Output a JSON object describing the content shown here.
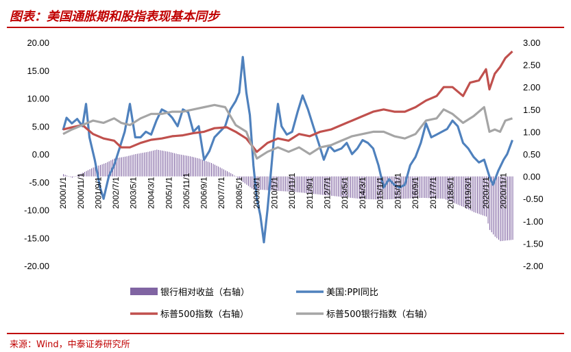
{
  "header": {
    "title": "图表：美国通胀期和股指表现基本同步"
  },
  "footer": {
    "source": "来源：Wind，中泰证券研究所"
  },
  "chart_data": {
    "type": "line",
    "title": "",
    "x_ticks": [
      "2000/1/1",
      "2000/11/1",
      "2001/9/1",
      "2002/7/1",
      "2003/5/1",
      "2004/3/1",
      "2005/1/1",
      "2005/11/1",
      "2006/9/1",
      "2007/7/1",
      "2008/5/1",
      "2009/3/1",
      "2010/1/1",
      "2010/11/1",
      "2011/9/1",
      "2012/7/1",
      "2013/5/1",
      "2014/3/1",
      "2015/1/1",
      "2015/11/1",
      "2016/9/1",
      "2017/7/1",
      "2018/5/1",
      "2019/3/1",
      "2020/1/1",
      "2020/11/1"
    ],
    "x_range": [
      "2000/1/1",
      "2021/5/1"
    ],
    "left_axis": {
      "ticks": [
        "20.00",
        "15.00",
        "10.00",
        "5.00",
        "0.00",
        "-5.00",
        "-10.00",
        "-15.00",
        "-20.00"
      ],
      "ylim": [
        -20,
        20
      ]
    },
    "right_axis": {
      "ticks": [
        "3.00",
        "2.50",
        "2.00",
        "1.50",
        "1.00",
        "0.50",
        "0.00",
        "-0.50",
        "-1.00",
        "-1.50",
        "-2.00"
      ],
      "ylim": [
        -2,
        3
      ]
    },
    "series": [
      {
        "name": "银行相对收益（右轴）",
        "type": "bar",
        "axis": "right",
        "color": "#8064a2",
        "points": [
          [
            "2000/1/1",
            0.05
          ],
          [
            "2000/6/1",
            -0.03
          ],
          [
            "2001/1/1",
            0.1
          ],
          [
            "2001/6/1",
            0.2
          ],
          [
            "2002/1/1",
            0.3
          ],
          [
            "2002/6/1",
            0.4
          ],
          [
            "2003/1/1",
            0.45
          ],
          [
            "2003/6/1",
            0.5
          ],
          [
            "2004/1/1",
            0.55
          ],
          [
            "2004/6/1",
            0.6
          ],
          [
            "2005/1/1",
            0.55
          ],
          [
            "2005/6/1",
            0.5
          ],
          [
            "2006/1/1",
            0.45
          ],
          [
            "2006/6/1",
            0.4
          ],
          [
            "2007/1/1",
            0.3
          ],
          [
            "2007/6/1",
            0.2
          ],
          [
            "2008/1/1",
            0.05
          ],
          [
            "2008/6/1",
            -0.1
          ],
          [
            "2009/1/1",
            -0.3
          ],
          [
            "2009/6/1",
            -0.3
          ],
          [
            "2010/1/1",
            -0.32
          ],
          [
            "2011/1/1",
            -0.35
          ],
          [
            "2012/1/1",
            -0.4
          ],
          [
            "2013/1/1",
            -0.45
          ],
          [
            "2014/1/1",
            -0.5
          ],
          [
            "2015/1/1",
            -0.52
          ],
          [
            "2016/1/1",
            -0.5
          ],
          [
            "2017/1/1",
            -0.48
          ],
          [
            "2018/1/1",
            -0.5
          ],
          [
            "2019/1/1",
            -0.7
          ],
          [
            "2019/6/1",
            -0.8
          ],
          [
            "2020/1/1",
            -0.9
          ],
          [
            "2020/3/1",
            -1.2
          ],
          [
            "2020/6/1",
            -1.35
          ],
          [
            "2020/9/1",
            -1.45
          ],
          [
            "2021/4/1",
            -1.42
          ]
        ]
      },
      {
        "name": "美国:PPI同比",
        "type": "line",
        "axis": "left",
        "color": "#4f81bd",
        "points": [
          [
            "2000/1/1",
            4.3
          ],
          [
            "2000/3/1",
            6.5
          ],
          [
            "2000/6/1",
            5.5
          ],
          [
            "2000/9/1",
            6.3
          ],
          [
            "2000/12/1",
            5.0
          ],
          [
            "2001/2/1",
            9.0
          ],
          [
            "2001/4/1",
            3.0
          ],
          [
            "2001/7/1",
            -1.0
          ],
          [
            "2001/10/1",
            -6.0
          ],
          [
            "2001/12/1",
            -8.0
          ],
          [
            "2002/3/1",
            -4.0
          ],
          [
            "2002/6/1",
            -2.0
          ],
          [
            "2002/9/1",
            1.0
          ],
          [
            "2002/12/1",
            4.0
          ],
          [
            "2003/3/1",
            9.0
          ],
          [
            "2003/6/1",
            3.0
          ],
          [
            "2003/9/1",
            3.0
          ],
          [
            "2003/12/1",
            4.0
          ],
          [
            "2004/3/1",
            3.5
          ],
          [
            "2004/6/1",
            6.0
          ],
          [
            "2004/9/1",
            8.0
          ],
          [
            "2004/12/1",
            7.5
          ],
          [
            "2005/3/1",
            6.5
          ],
          [
            "2005/6/1",
            5.0
          ],
          [
            "2005/9/1",
            8.0
          ],
          [
            "2005/12/1",
            7.5
          ],
          [
            "2006/3/1",
            4.0
          ],
          [
            "2006/6/1",
            5.0
          ],
          [
            "2006/9/1",
            -1.0
          ],
          [
            "2006/12/1",
            0.5
          ],
          [
            "2007/3/1",
            3.0
          ],
          [
            "2007/6/1",
            4.0
          ],
          [
            "2007/9/1",
            5.0
          ],
          [
            "2007/12/1",
            8.0
          ],
          [
            "2008/3/1",
            9.5
          ],
          [
            "2008/5/1",
            11.0
          ],
          [
            "2008/7/1",
            17.4
          ],
          [
            "2008/9/1",
            11.0
          ],
          [
            "2008/11/1",
            7.0
          ],
          [
            "2009/1/1",
            -2.0
          ],
          [
            "2009/3/1",
            -8.0
          ],
          [
            "2009/5/1",
            -11.0
          ],
          [
            "2009/7/1",
            -15.8
          ],
          [
            "2009/9/1",
            -10.0
          ],
          [
            "2009/11/1",
            -3.0
          ],
          [
            "2010/1/1",
            4.0
          ],
          [
            "2010/3/1",
            9.0
          ],
          [
            "2010/5/1",
            5.0
          ],
          [
            "2010/8/1",
            3.5
          ],
          [
            "2010/11/1",
            4.0
          ],
          [
            "2011/2/1",
            7.5
          ],
          [
            "2011/5/1",
            10.5
          ],
          [
            "2011/8/1",
            8.0
          ],
          [
            "2011/11/1",
            5.0
          ],
          [
            "2012/2/1",
            2.0
          ],
          [
            "2012/5/1",
            -1.0
          ],
          [
            "2012/8/1",
            1.5
          ],
          [
            "2012/11/1",
            0.5
          ],
          [
            "2013/3/1",
            1.0
          ],
          [
            "2013/6/1",
            2.0
          ],
          [
            "2013/9/1",
            0.0
          ],
          [
            "2013/12/1",
            1.0
          ],
          [
            "2014/3/1",
            2.5
          ],
          [
            "2014/6/1",
            2.0
          ],
          [
            "2014/9/1",
            1.0
          ],
          [
            "2014/12/1",
            -2.0
          ],
          [
            "2015/3/1",
            -6.0
          ],
          [
            "2015/6/1",
            -4.5
          ],
          [
            "2015/9/1",
            -5.5
          ],
          [
            "2015/12/1",
            -6.0
          ],
          [
            "2016/3/1",
            -5.5
          ],
          [
            "2016/6/1",
            -2.0
          ],
          [
            "2016/9/1",
            -0.5
          ],
          [
            "2016/12/1",
            2.0
          ],
          [
            "2017/3/1",
            5.5
          ],
          [
            "2017/6/1",
            3.0
          ],
          [
            "2017/9/1",
            3.5
          ],
          [
            "2017/12/1",
            4.0
          ],
          [
            "2018/3/1",
            4.5
          ],
          [
            "2018/6/1",
            6.0
          ],
          [
            "2018/9/1",
            5.0
          ],
          [
            "2018/12/1",
            2.0
          ],
          [
            "2019/3/1",
            1.0
          ],
          [
            "2019/6/1",
            -0.5
          ],
          [
            "2019/9/1",
            -1.5
          ],
          [
            "2019/12/1",
            -1.0
          ],
          [
            "2020/3/1",
            -4.0
          ],
          [
            "2020/5/1",
            -5.5
          ],
          [
            "2020/8/1",
            -3.0
          ],
          [
            "2020/11/1",
            -1.0
          ],
          [
            "2021/1/1",
            0.0
          ],
          [
            "2021/4/1",
            2.5
          ]
        ]
      },
      {
        "name": "标普500指数（右轴）",
        "type": "line",
        "axis": "right",
        "color": "#c0504d",
        "points": [
          [
            "2000/1/1",
            1.05
          ],
          [
            "2000/6/1",
            1.1
          ],
          [
            "2000/12/1",
            1.15
          ],
          [
            "2001/6/1",
            0.95
          ],
          [
            "2001/12/1",
            0.85
          ],
          [
            "2002/6/1",
            0.8
          ],
          [
            "2002/10/1",
            0.65
          ],
          [
            "2003/3/1",
            0.65
          ],
          [
            "2003/9/1",
            0.75
          ],
          [
            "2004/3/1",
            0.82
          ],
          [
            "2004/9/1",
            0.85
          ],
          [
            "2005/3/1",
            0.9
          ],
          [
            "2005/9/1",
            0.92
          ],
          [
            "2006/3/1",
            0.97
          ],
          [
            "2006/9/1",
            1.0
          ],
          [
            "2007/3/1",
            1.08
          ],
          [
            "2007/10/1",
            1.1
          ],
          [
            "2008/3/1",
            1.0
          ],
          [
            "2008/9/1",
            0.85
          ],
          [
            "2009/3/1",
            0.55
          ],
          [
            "2009/9/1",
            0.75
          ],
          [
            "2010/3/1",
            0.85
          ],
          [
            "2010/9/1",
            0.8
          ],
          [
            "2011/3/1",
            0.95
          ],
          [
            "2011/9/1",
            0.9
          ],
          [
            "2012/3/1",
            1.0
          ],
          [
            "2012/9/1",
            1.05
          ],
          [
            "2013/3/1",
            1.15
          ],
          [
            "2013/9/1",
            1.25
          ],
          [
            "2014/3/1",
            1.35
          ],
          [
            "2014/9/1",
            1.45
          ],
          [
            "2015/3/1",
            1.5
          ],
          [
            "2015/9/1",
            1.45
          ],
          [
            "2016/3/1",
            1.45
          ],
          [
            "2016/9/1",
            1.55
          ],
          [
            "2017/3/1",
            1.7
          ],
          [
            "2017/9/1",
            1.8
          ],
          [
            "2018/1/1",
            2.0
          ],
          [
            "2018/6/1",
            2.0
          ],
          [
            "2018/12/1",
            1.8
          ],
          [
            "2019/4/1",
            2.1
          ],
          [
            "2019/9/1",
            2.15
          ],
          [
            "2020/1/1",
            2.4
          ],
          [
            "2020/3/1",
            1.95
          ],
          [
            "2020/6/1",
            2.3
          ],
          [
            "2020/9/1",
            2.45
          ],
          [
            "2020/12/1",
            2.65
          ],
          [
            "2021/4/1",
            2.8
          ]
        ]
      },
      {
        "name": "标普500银行指数（右轴）",
        "type": "line",
        "axis": "right",
        "color": "#a5a5a5",
        "points": [
          [
            "2000/1/1",
            0.95
          ],
          [
            "2000/6/1",
            1.05
          ],
          [
            "2000/12/1",
            1.15
          ],
          [
            "2001/6/1",
            1.25
          ],
          [
            "2001/12/1",
            1.2
          ],
          [
            "2002/6/1",
            1.3
          ],
          [
            "2002/10/1",
            1.2
          ],
          [
            "2003/3/1",
            1.15
          ],
          [
            "2003/9/1",
            1.3
          ],
          [
            "2004/3/1",
            1.4
          ],
          [
            "2004/9/1",
            1.4
          ],
          [
            "2005/3/1",
            1.45
          ],
          [
            "2005/9/1",
            1.45
          ],
          [
            "2006/3/1",
            1.5
          ],
          [
            "2006/9/1",
            1.55
          ],
          [
            "2007/3/1",
            1.6
          ],
          [
            "2007/9/1",
            1.55
          ],
          [
            "2008/3/1",
            1.15
          ],
          [
            "2008/9/1",
            1.0
          ],
          [
            "2009/3/1",
            0.4
          ],
          [
            "2009/9/1",
            0.55
          ],
          [
            "2010/3/1",
            0.65
          ],
          [
            "2010/9/1",
            0.55
          ],
          [
            "2011/3/1",
            0.65
          ],
          [
            "2011/9/1",
            0.5
          ],
          [
            "2012/3/1",
            0.65
          ],
          [
            "2012/9/1",
            0.7
          ],
          [
            "2013/3/1",
            0.8
          ],
          [
            "2013/9/1",
            0.9
          ],
          [
            "2014/3/1",
            0.95
          ],
          [
            "2014/9/1",
            1.0
          ],
          [
            "2015/3/1",
            1.0
          ],
          [
            "2015/9/1",
            0.9
          ],
          [
            "2016/3/1",
            0.85
          ],
          [
            "2016/9/1",
            0.95
          ],
          [
            "2017/3/1",
            1.25
          ],
          [
            "2017/9/1",
            1.3
          ],
          [
            "2018/1/1",
            1.5
          ],
          [
            "2018/6/1",
            1.4
          ],
          [
            "2018/12/1",
            1.2
          ],
          [
            "2019/6/1",
            1.35
          ],
          [
            "2019/12/1",
            1.55
          ],
          [
            "2020/3/1",
            1.0
          ],
          [
            "2020/6/1",
            1.05
          ],
          [
            "2020/9/1",
            1.0
          ],
          [
            "2020/12/1",
            1.25
          ],
          [
            "2021/4/1",
            1.3
          ]
        ]
      }
    ],
    "legend": {
      "position": "bottom",
      "entries": [
        "银行相对收益（右轴）",
        "美国:PPI同比",
        "标普500指数（右轴）",
        "标普500银行指数（右轴）"
      ]
    }
  }
}
